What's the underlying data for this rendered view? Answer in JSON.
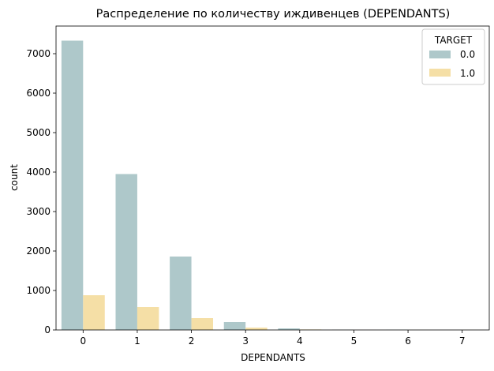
{
  "chart_data": {
    "type": "bar",
    "title": "Распределение по количеству иждивенцев (DEPENDANTS)",
    "xlabel": "DEPENDANTS",
    "ylabel": "count",
    "categories": [
      "0",
      "1",
      "2",
      "3",
      "4",
      "5",
      "6",
      "7"
    ],
    "yticks": [
      "0",
      "1000",
      "2000",
      "3000",
      "4000",
      "5000",
      "6000",
      "7000"
    ],
    "ylim": [
      0,
      7700
    ],
    "grid": false,
    "legend": {
      "title": "TARGET",
      "placement": "top-right"
    },
    "series": [
      {
        "name": "0.0",
        "color": "#aec8ca",
        "values": [
          7330,
          3950,
          1860,
          200,
          40,
          5,
          3,
          2
        ]
      },
      {
        "name": "1.0",
        "color": "#f5dfa6",
        "values": [
          880,
          580,
          300,
          60,
          12,
          2,
          1,
          1
        ]
      }
    ]
  }
}
